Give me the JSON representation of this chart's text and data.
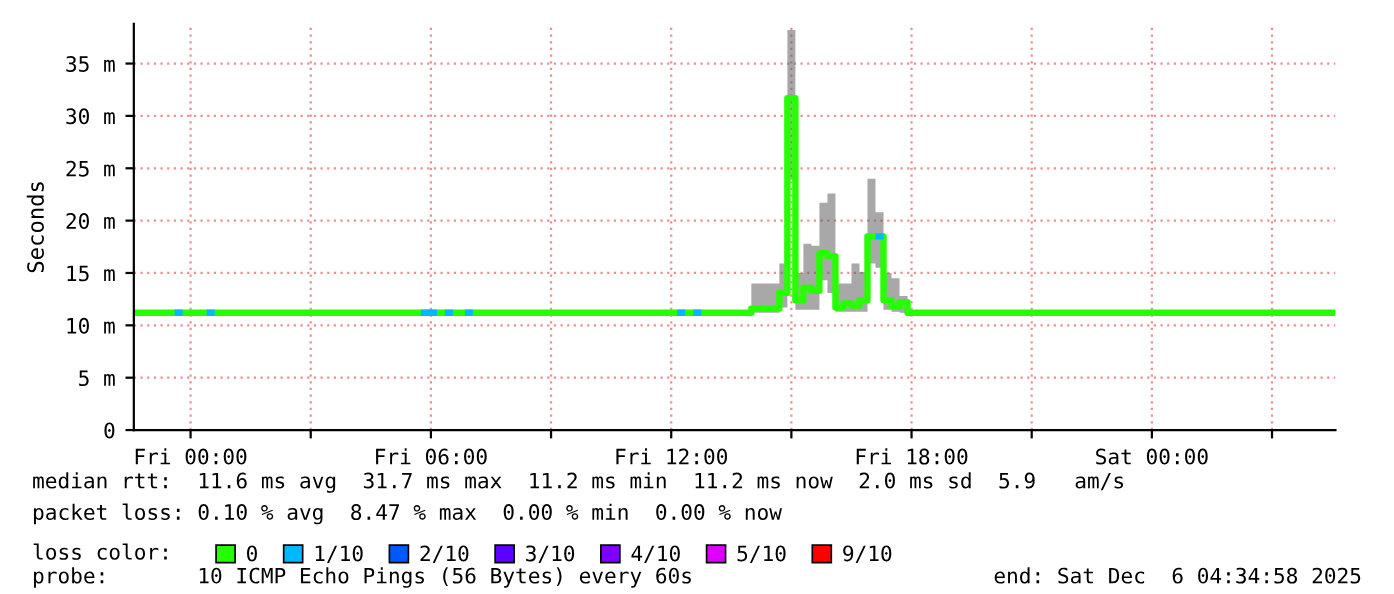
{
  "chart_data": {
    "type": "step",
    "ylabel": "Seconds",
    "legend_title": "loss color:",
    "legend": "bottom",
    "grid": true,
    "xlim": [
      "2025-12-04T22:35",
      "2025-12-06T04:35"
    ],
    "xticks": [
      {
        "value": "2025-12-05T00:00",
        "label": "Fri 00:00"
      },
      {
        "value": "2025-12-05T03:00",
        "label": null
      },
      {
        "value": "2025-12-05T06:00",
        "label": "Fri 06:00"
      },
      {
        "value": "2025-12-05T09:00",
        "label": null
      },
      {
        "value": "2025-12-05T12:00",
        "label": "Fri 12:00"
      },
      {
        "value": "2025-12-05T15:00",
        "label": null
      },
      {
        "value": "2025-12-05T18:00",
        "label": "Fri 18:00"
      },
      {
        "value": "2025-12-05T21:00",
        "label": null
      },
      {
        "value": "2025-12-06T00:00",
        "label": "Sat 00:00"
      },
      {
        "value": "2025-12-06T03:00",
        "label": null
      }
    ],
    "ylim": [
      0,
      38.8
    ],
    "yticks": [
      0,
      {
        "value": 5,
        "label": "5 m"
      },
      {
        "value": 10,
        "label": "10 m"
      },
      {
        "value": 15,
        "label": "15 m"
      },
      {
        "value": 20,
        "label": "20 m"
      },
      {
        "value": 25,
        "label": "25 m"
      },
      {
        "value": 30,
        "label": "30 m"
      },
      {
        "value": 35,
        "label": "35 m"
      }
    ],
    "series": [
      {
        "name": "0",
        "color": "#26ff00",
        "x": [
          "2025-12-04T22:36",
          "2025-12-05T14:00",
          "2025-12-05T14:30",
          "2025-12-05T14:42",
          "2025-12-05T14:54",
          "2025-12-05T15:06",
          "2025-12-05T15:18",
          "2025-12-05T15:30",
          "2025-12-05T15:42",
          "2025-12-05T15:54",
          "2025-12-05T16:06",
          "2025-12-05T16:18",
          "2025-12-05T16:30",
          "2025-12-05T16:42",
          "2025-12-05T16:54",
          "2025-12-05T17:06",
          "2025-12-05T17:18",
          "2025-12-05T17:30",
          "2025-12-05T17:42",
          "2025-12-05T17:54",
          "2025-12-06T04:35"
        ],
        "values": [
          11.2,
          11.6,
          11.6,
          13.1,
          31.7,
          12.4,
          13.6,
          13.3,
          16.9,
          16.6,
          11.7,
          12.1,
          11.9,
          12.4,
          18.5,
          18.5,
          12.4,
          11.8,
          12.2,
          11.2,
          11.2
        ],
        "lower": [
          11.1,
          11.2,
          11.2,
          11.7,
          23.9,
          11.5,
          11.5,
          11.5,
          14.3,
          13.1,
          11.3,
          11.3,
          11.3,
          11.3,
          15.9,
          15.5,
          11.5,
          11.3,
          11.2,
          11.1,
          11.1
        ],
        "upper": [
          11.4,
          14.0,
          14.0,
          15.9,
          38.2,
          15.0,
          17.8,
          17.6,
          21.7,
          22.6,
          14.0,
          14.0,
          15.9,
          15.1,
          24.0,
          20.8,
          15.0,
          14.5,
          12.8,
          11.4,
          11.4
        ]
      },
      {
        "name": "1/10",
        "color": "#00b8ff",
        "x": [
          "2025-12-04T23:36",
          "2025-12-04T23:48",
          "2025-12-05T00:06",
          "2025-12-05T00:24",
          "2025-12-05T00:36",
          "2025-12-05T03:00",
          "2025-12-05T05:45",
          "2025-12-05T06:09",
          "2025-12-05T06:15",
          "2025-12-05T06:21",
          "2025-12-05T06:33",
          "2025-12-05T06:42",
          "2025-12-05T06:51",
          "2025-12-05T07:03",
          "2025-12-05T09:00",
          "2025-12-05T12:09",
          "2025-12-05T12:21",
          "2025-12-05T12:27",
          "2025-12-05T12:33",
          "2025-12-05T12:45",
          "2025-12-05T15:00",
          "2025-12-05T17:06",
          "2025-12-05T17:18"
        ],
        "values": [
          11.2,
          11.2,
          null,
          11.2,
          11.2,
          null,
          11.2,
          11.2,
          null,
          11.2,
          11.2,
          null,
          11.2,
          11.2,
          null,
          11.2,
          11.2,
          null,
          11.2,
          11.2,
          null,
          18.5,
          18.5
        ]
      },
      {
        "name": "2/10",
        "color": "#0059ff"
      },
      {
        "name": "3/10",
        "color": "#5e00ff"
      },
      {
        "name": "4/10",
        "color": "#7e00ff"
      },
      {
        "name": "5/10",
        "color": "#dd00ff"
      },
      {
        "name": "9/10",
        "color": "#ff0000"
      }
    ],
    "annotations": [
      "median rtt:  11.6 ms avg  31.7 ms max  11.2 ms min  11.2 ms now  2.0 ms sd  5.9   am/s",
      "packet loss: 0.10 % avg  8.47 % max  0.00 % min  0.00 % now",
      "probe:       10 ICMP Echo Pings (56 Bytes) every 60s",
      "end: Sat Dec  6 04:34:58 2025"
    ]
  }
}
